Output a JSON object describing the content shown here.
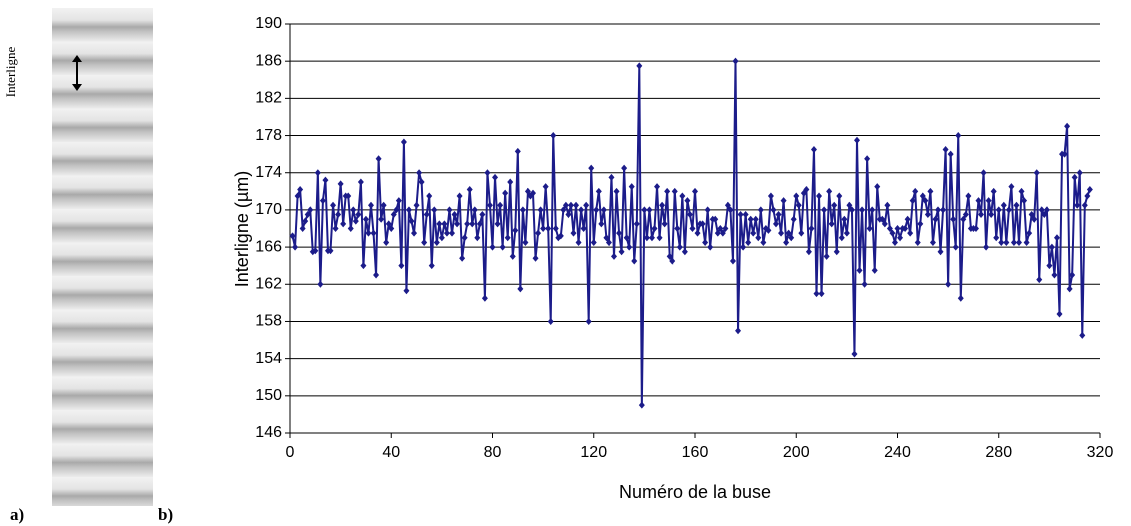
{
  "panel_a": {
    "label": "a)",
    "annotation": "Interligne"
  },
  "panel_b": {
    "label": "b)"
  },
  "chart_data": {
    "type": "line",
    "xlabel": "Numéro de la buse",
    "ylabel": "Interligne (µm)",
    "xlim": [
      0,
      320
    ],
    "xticks": [
      0,
      40,
      80,
      120,
      160,
      200,
      240,
      280,
      320
    ],
    "ylim": [
      146,
      190
    ],
    "yticks": [
      146,
      150,
      154,
      158,
      162,
      166,
      170,
      174,
      178,
      182,
      186,
      190
    ],
    "grid": true,
    "x": [
      1,
      2,
      3,
      4,
      5,
      6,
      7,
      8,
      9,
      10,
      11,
      12,
      13,
      14,
      15,
      16,
      17,
      18,
      19,
      20,
      21,
      22,
      23,
      24,
      25,
      26,
      27,
      28,
      29,
      30,
      31,
      32,
      33,
      34,
      35,
      36,
      37,
      38,
      39,
      40,
      41,
      42,
      43,
      44,
      45,
      46,
      47,
      48,
      49,
      50,
      51,
      52,
      53,
      54,
      55,
      56,
      57,
      58,
      59,
      60,
      61,
      62,
      63,
      64,
      65,
      66,
      67,
      68,
      69,
      70,
      71,
      72,
      73,
      74,
      75,
      76,
      77,
      78,
      79,
      80,
      81,
      82,
      83,
      84,
      85,
      86,
      87,
      88,
      89,
      90,
      91,
      92,
      93,
      94,
      95,
      96,
      97,
      98,
      99,
      100,
      101,
      102,
      103,
      104,
      105,
      106,
      107,
      108,
      109,
      110,
      111,
      112,
      113,
      114,
      115,
      116,
      117,
      118,
      119,
      120,
      121,
      122,
      123,
      124,
      125,
      126,
      127,
      128,
      129,
      130,
      131,
      132,
      133,
      134,
      135,
      136,
      137,
      138,
      139,
      140,
      141,
      142,
      143,
      144,
      145,
      146,
      147,
      148,
      149,
      150,
      151,
      152,
      153,
      154,
      155,
      156,
      157,
      158,
      159,
      160,
      161,
      162,
      163,
      164,
      165,
      166,
      167,
      168,
      169,
      170,
      171,
      172,
      173,
      174,
      175,
      176,
      177,
      178,
      179,
      180,
      181,
      182,
      183,
      184,
      185,
      186,
      187,
      188,
      189,
      190,
      191,
      192,
      193,
      194,
      195,
      196,
      197,
      198,
      199,
      200,
      201,
      202,
      203,
      204,
      205,
      206,
      207,
      208,
      209,
      210,
      211,
      212,
      213,
      214,
      215,
      216,
      217,
      218,
      219,
      220,
      221,
      222,
      223,
      224,
      225,
      226,
      227,
      228,
      229,
      230,
      231,
      232,
      233,
      234,
      235,
      236,
      237,
      238,
      239,
      240,
      241,
      242,
      243,
      244,
      245,
      246,
      247,
      248,
      249,
      250,
      251,
      252,
      253,
      254,
      255,
      256,
      257,
      258,
      259,
      260,
      261,
      262,
      263,
      264,
      265,
      266,
      267,
      268,
      269,
      270,
      271,
      272,
      273,
      274,
      275,
      276,
      277,
      278,
      279,
      280,
      281,
      282,
      283,
      284,
      285,
      286,
      287,
      288,
      289,
      290,
      291,
      292,
      293,
      294,
      295,
      296,
      297,
      298,
      299,
      300,
      301,
      302,
      303,
      304,
      305,
      306,
      307,
      308,
      309,
      310,
      311,
      312,
      313,
      314,
      315,
      316
    ],
    "series": [
      {
        "color": "#1c1c8a",
        "values": [
          167.2,
          166.0,
          171.5,
          172.2,
          168.0,
          168.8,
          169.5,
          170.0,
          165.5,
          165.6,
          174.0,
          162.0,
          171.0,
          173.2,
          165.6,
          165.6,
          170.5,
          168.0,
          169.5,
          172.8,
          168.5,
          171.5,
          171.5,
          168.0,
          170.0,
          168.8,
          169.5,
          173.0,
          164.0,
          169.0,
          167.5,
          170.5,
          167.5,
          163.0,
          175.5,
          169.0,
          170.5,
          166.5,
          168.5,
          168.0,
          169.5,
          170.0,
          171.0,
          164.0,
          177.3,
          161.3,
          170.0,
          168.8,
          167.5,
          170.5,
          174.0,
          173.0,
          166.5,
          169.5,
          171.5,
          164.0,
          170.0,
          166.5,
          168.5,
          167.0,
          168.5,
          167.5,
          170.0,
          167.5,
          169.5,
          168.5,
          171.5,
          164.8,
          167.0,
          168.5,
          172.2,
          168.5,
          170.0,
          167.0,
          168.5,
          169.5,
          160.5,
          174.0,
          170.5,
          166.0,
          173.5,
          168.5,
          170.5,
          166.0,
          171.8,
          167.0,
          173.0,
          165.0,
          167.8,
          176.3,
          161.5,
          170.0,
          166.5,
          172.0,
          171.5,
          171.8,
          164.8,
          167.5,
          170.0,
          168.0,
          172.5,
          168.0,
          158.0,
          178.0,
          168.0,
          167.0,
          167.2,
          170.0,
          170.5,
          169.5,
          170.5,
          167.5,
          170.5,
          166.5,
          170.0,
          168.0,
          170.5,
          158.0,
          174.5,
          166.5,
          170.0,
          172.0,
          168.5,
          170.0,
          167.0,
          166.5,
          173.5,
          165.0,
          172.0,
          167.5,
          165.5,
          174.5,
          167.0,
          166.0,
          172.5,
          164.5,
          168.5,
          185.5,
          149.0,
          170.0,
          167.0,
          170.0,
          167.0,
          168.0,
          172.5,
          167.0,
          170.5,
          168.5,
          172.0,
          165.0,
          164.5,
          172.0,
          168.0,
          166.0,
          171.5,
          165.5,
          171.0,
          169.5,
          168.0,
          172.0,
          167.5,
          168.5,
          168.5,
          166.5,
          170.0,
          166.0,
          169.0,
          169.0,
          167.5,
          168.0,
          167.5,
          168.0,
          170.5,
          170.0,
          164.5,
          186.0,
          157.0,
          169.5,
          166.0,
          169.5,
          166.5,
          169.0,
          167.5,
          169.0,
          167.0,
          170.0,
          166.5,
          168.0,
          167.8,
          171.5,
          170.0,
          168.5,
          169.5,
          167.5,
          171.0,
          166.5,
          167.5,
          167.0,
          169.0,
          171.5,
          170.5,
          167.5,
          171.8,
          172.2,
          165.5,
          168.0,
          176.5,
          161.0,
          171.5,
          161.0,
          170.0,
          165.0,
          172.0,
          168.5,
          170.5,
          165.5,
          171.5,
          167.0,
          169.0,
          167.5,
          170.5,
          170.0,
          154.5,
          177.5,
          163.5,
          170.0,
          162.0,
          175.5,
          168.0,
          170.0,
          163.5,
          172.5,
          169.0,
          169.0,
          168.5,
          170.5,
          168.0,
          167.5,
          166.5,
          168.0,
          167.0,
          168.0,
          168.0,
          169.0,
          167.5,
          171.0,
          172.0,
          166.5,
          168.5,
          171.5,
          171.0,
          169.5,
          172.0,
          166.5,
          169.0,
          170.0,
          165.5,
          170.0,
          176.5,
          162.0,
          176.0,
          169.0,
          166.0,
          178.0,
          160.5,
          169.0,
          169.5,
          171.5,
          168.0,
          168.0,
          168.0,
          171.0,
          169.5,
          174.0,
          166.0,
          171.0,
          169.5,
          172.0,
          167.0,
          170.0,
          166.5,
          170.5,
          166.5,
          170.0,
          172.5,
          166.5,
          170.5,
          166.5,
          172.0,
          171.0,
          166.5,
          167.5,
          169.5,
          169.0,
          174.0,
          162.5,
          170.0,
          169.5,
          170.0,
          164.0,
          166.0,
          163.0,
          167.0,
          158.8,
          176.0,
          176.0,
          179.0,
          161.5,
          163.0,
          173.5,
          170.5,
          174.0,
          156.5,
          170.5,
          171.5,
          172.2
        ]
      }
    ]
  }
}
